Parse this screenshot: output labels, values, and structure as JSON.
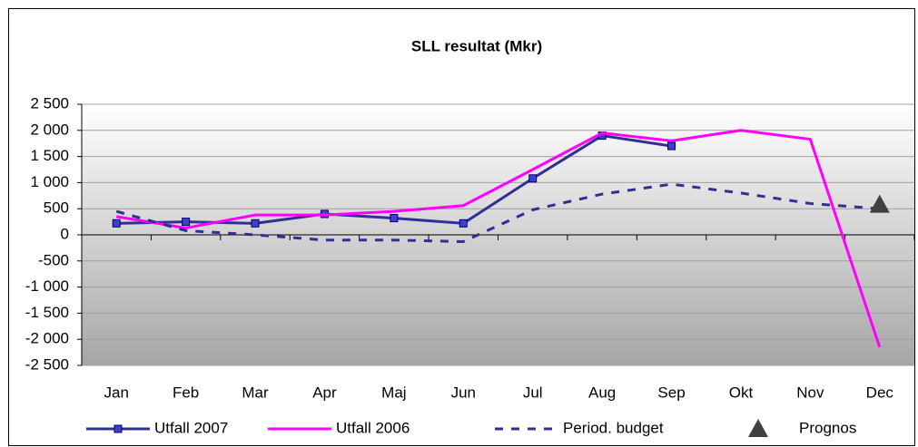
{
  "chart_data": {
    "type": "line",
    "title": "SLL resultat (Mkr)",
    "categories": [
      "Jan",
      "Feb",
      "Mar",
      "Apr",
      "Maj",
      "Jun",
      "Jul",
      "Aug",
      "Sep",
      "Okt",
      "Nov",
      "Dec"
    ],
    "series": [
      {
        "name": "Utfall 2007",
        "color": "#2e3192",
        "line_style": "solid",
        "marker": "square",
        "values": [
          220,
          250,
          220,
          400,
          320,
          220,
          1080,
          1900,
          1700,
          null,
          null,
          null
        ]
      },
      {
        "name": "Utfall 2006",
        "color": "#ff00ff",
        "line_style": "solid",
        "marker": "none",
        "values": [
          350,
          130,
          380,
          380,
          450,
          560,
          1250,
          1950,
          1800,
          2000,
          1830,
          -2150
        ]
      },
      {
        "name": "Period. budget",
        "color": "#2e3192",
        "line_style": "dashed",
        "marker": "none",
        "values": [
          450,
          80,
          0,
          -100,
          -100,
          -130,
          480,
          780,
          970,
          800,
          600,
          500
        ]
      },
      {
        "name": "Prognos",
        "color": "#404040",
        "line_style": "none",
        "marker": "triangle",
        "values": [
          null,
          null,
          null,
          null,
          null,
          null,
          null,
          null,
          null,
          null,
          null,
          580
        ]
      }
    ],
    "ylim": [
      -2500,
      2500
    ],
    "yticks": [
      {
        "value": 2500,
        "label": "2 500"
      },
      {
        "value": 2000,
        "label": "2 000"
      },
      {
        "value": 1500,
        "label": "1 500"
      },
      {
        "value": 1000,
        "label": "1 000"
      },
      500,
      0,
      -500,
      {
        "value": -1000,
        "label": "-1 000"
      },
      {
        "value": -1500,
        "label": "-1 500"
      },
      {
        "value": -2000,
        "label": "-2 000"
      },
      {
        "value": -2500,
        "label": "-2 500"
      }
    ],
    "grid": true,
    "legend": "bottom"
  }
}
